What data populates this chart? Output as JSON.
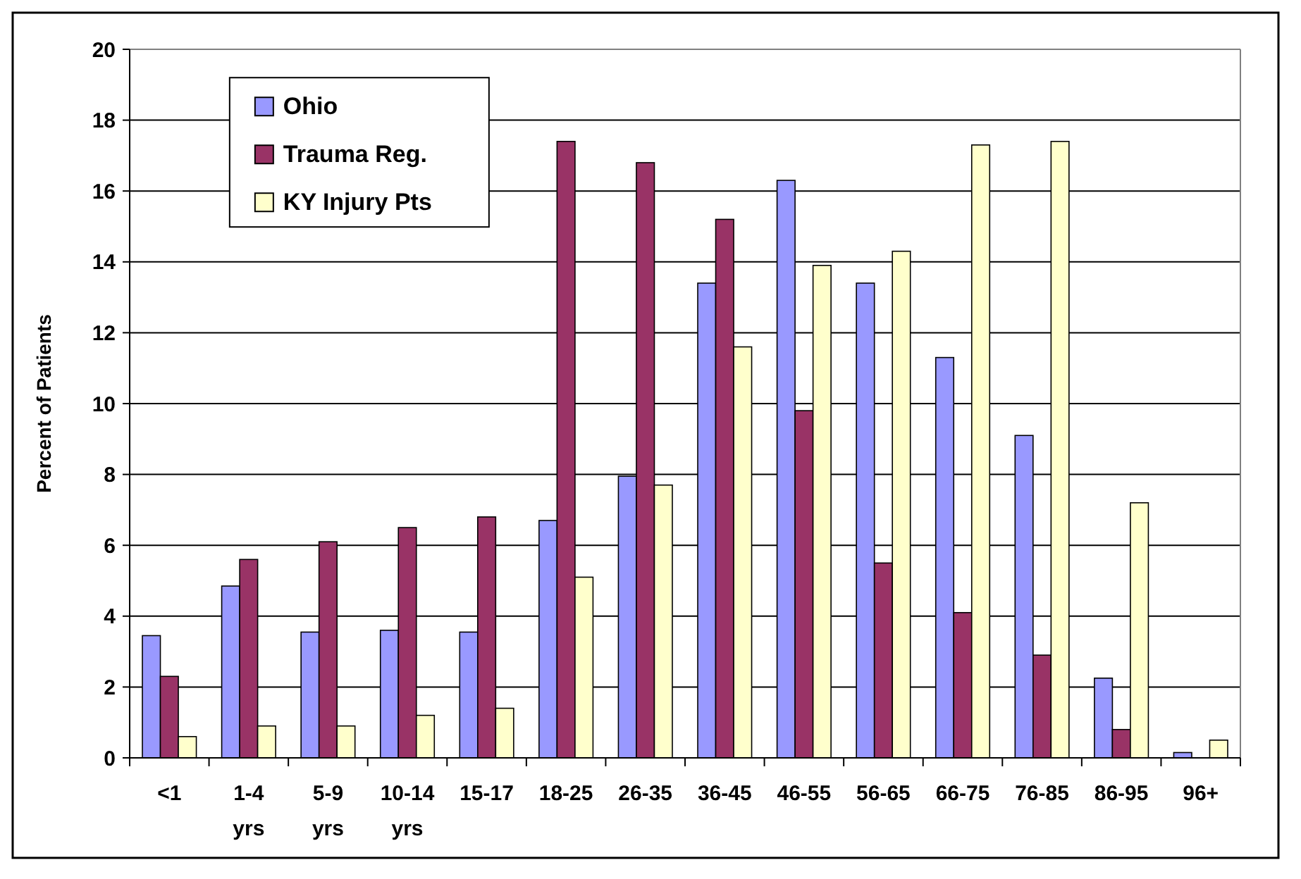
{
  "chart_data": {
    "type": "bar",
    "ylabel": "Percent of Patients",
    "categories": [
      "<1",
      "1-4 yrs",
      "5-9 yrs",
      "10-14 yrs",
      "15-17",
      "18-25",
      "26-35",
      "36-45",
      "46-55",
      "56-65",
      "66-75",
      "76-85",
      "86-95",
      "96+"
    ],
    "series": [
      {
        "name": "Ohio",
        "color": "#9999ff",
        "values": [
          3.45,
          4.85,
          3.55,
          3.6,
          3.55,
          6.7,
          7.95,
          13.4,
          16.3,
          13.4,
          11.3,
          9.1,
          2.25,
          0.15
        ]
      },
      {
        "name": "Trauma Reg.",
        "color": "#993366",
        "values": [
          2.3,
          5.6,
          6.1,
          6.5,
          6.8,
          17.4,
          16.8,
          15.2,
          9.8,
          5.5,
          4.1,
          2.9,
          0.8,
          0
        ]
      },
      {
        "name": "KY Injury Pts",
        "color": "#ffffcc",
        "values": [
          0.6,
          0.9,
          0.9,
          1.2,
          1.4,
          5.1,
          7.7,
          11.6,
          13.9,
          14.3,
          17.3,
          17.4,
          7.2,
          0.5
        ]
      }
    ],
    "ylim": [
      0,
      20
    ],
    "yticks": [
      0,
      2,
      4,
      6,
      8,
      10,
      12,
      14,
      16,
      18,
      20
    ],
    "grid": "y",
    "legend": "top left"
  }
}
